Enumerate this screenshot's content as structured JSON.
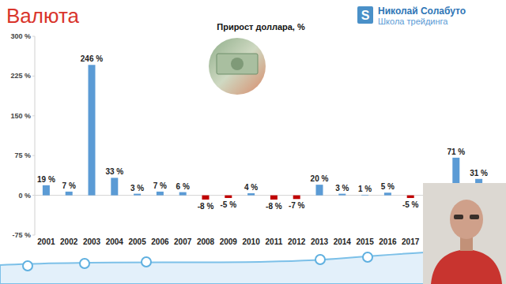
{
  "header": {
    "title": "Валюта",
    "brand_mark": "S",
    "brand": "Николай Солабуто",
    "brand_subtitle": "Школа трейдинга"
  },
  "chart_data": {
    "type": "bar",
    "title": "Прирост доллара, %",
    "categories": [
      "2001",
      "2002",
      "2003",
      "2004",
      "2005",
      "2006",
      "2007",
      "2008",
      "2009",
      "2010",
      "2011",
      "2012",
      "2013",
      "2014",
      "2015",
      "2016",
      "2017",
      null,
      null,
      null
    ],
    "values": [
      19,
      7,
      246,
      33,
      3,
      7,
      6,
      -8,
      -5,
      4,
      -8,
      -7,
      20,
      3,
      1,
      5,
      -5,
      null,
      71,
      31
    ],
    "value_labels": [
      "19 %",
      "7 %",
      "246 %",
      "33 %",
      "3 %",
      "7 %",
      "6 %",
      "-8 %",
      "-5 %",
      "4 %",
      "-8 %",
      "-7 %",
      "20 %",
      "3 %",
      "1 %",
      "5 %",
      "-5 %",
      null,
      "71 %",
      "31 %"
    ],
    "colors": [
      "#5b9bd5",
      "#5b9bd5",
      "#5b9bd5",
      "#5b9bd5",
      "#5b9bd5",
      "#5b9bd5",
      "#5b9bd5",
      "#c00000",
      "#c00000",
      "#5b9bd5",
      "#c00000",
      "#c00000",
      "#5b9bd5",
      "#5b9bd5",
      "#5b9bd5",
      "#5b9bd5",
      "#c00000",
      "#5b9bd5",
      "#5b9bd5",
      "#5b9bd5"
    ],
    "ylim": [
      -75,
      300
    ],
    "yticks": [
      {
        "value": -75,
        "label": "-75 %"
      },
      {
        "value": 0,
        "label": "0 %"
      },
      {
        "value": 75,
        "label": "75 %"
      },
      {
        "value": 150,
        "label": "150 %"
      },
      {
        "value": 225,
        "label": "225 %"
      },
      {
        "value": 300,
        "label": "300 %"
      }
    ],
    "data_labels": true,
    "grid": false
  }
}
